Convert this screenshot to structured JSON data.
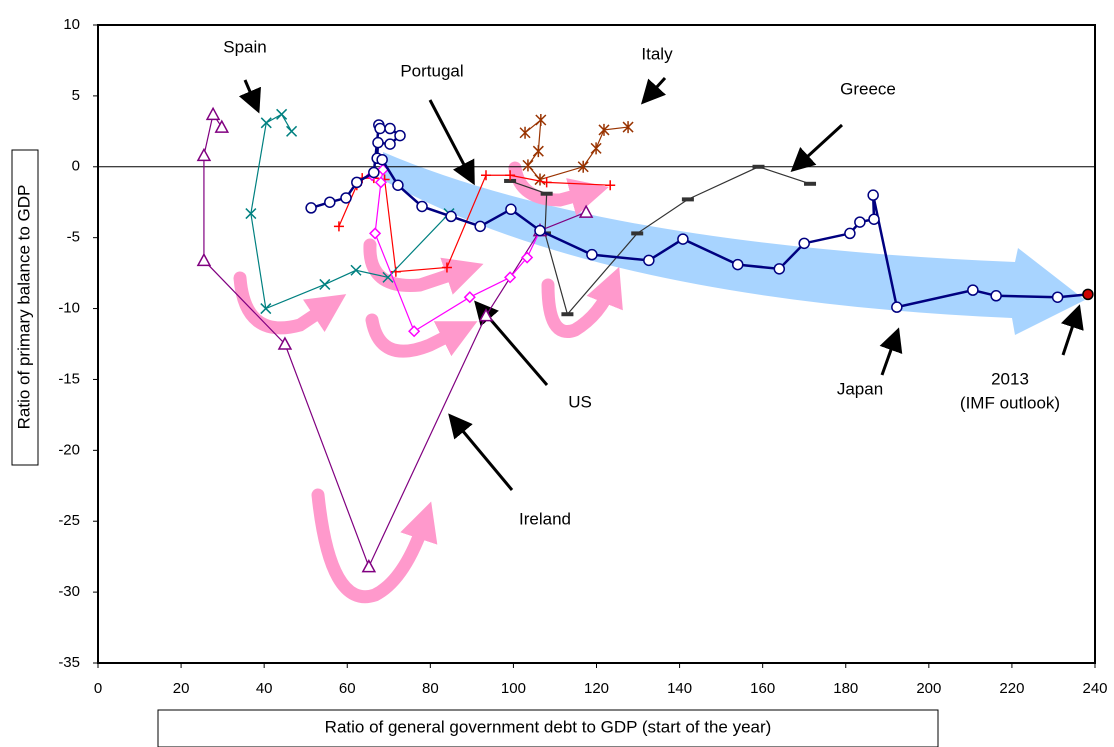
{
  "chart_data": {
    "type": "line",
    "x_label": "Ratio of general government debt to GDP (start of the year)",
    "y_label": "Ratio of primary balance to GDP",
    "xlim": [
      0,
      240
    ],
    "xticks": [
      0,
      20,
      40,
      60,
      80,
      100,
      120,
      140,
      160,
      180,
      200,
      220,
      240
    ],
    "ylim": [
      -35,
      10
    ],
    "yticks": [
      -35,
      -30,
      -25,
      -20,
      -15,
      -10,
      -5,
      0,
      5,
      10
    ],
    "zero_line": true,
    "annotations": [
      "2013",
      "(IMF outlook)"
    ],
    "last_point_color": "#cc0000",
    "series": [
      {
        "name": "Japan",
        "color": "#000080",
        "marker": "circle",
        "x": [
          51.3,
          55.8,
          59.7,
          62.3,
          66.4,
          67.6,
          67.9,
          70.3,
          72.7,
          70.3,
          67.4,
          67.2,
          68.4,
          72.2,
          78,
          85,
          92,
          99.4,
          106.4,
          118.9,
          132.6,
          140.8,
          154,
          164,
          170,
          181,
          183.4,
          186.8,
          186.6,
          192.3,
          210.6,
          216.2,
          231,
          238.3
        ],
        "values": [
          -2.9,
          -2.5,
          -2.2,
          -1.1,
          -0.4,
          2.95,
          2.7,
          2.7,
          2.2,
          1.6,
          1.7,
          0.6,
          0.5,
          -1.3,
          -2.8,
          -3.5,
          -4.2,
          -3.0,
          -4.5,
          -6.2,
          -6.6,
          -5.1,
          -6.9,
          -7.2,
          -5.4,
          -4.7,
          -3.9,
          -3.7,
          -2.0,
          -9.9,
          -8.7,
          -9.1,
          -9.2,
          -9.0
        ]
      },
      {
        "name": "Ireland",
        "color": "#800080",
        "marker": "triangle",
        "x": [
          29.8,
          27.7,
          25.5,
          25.5,
          45,
          65.2,
          93.4,
          106.4,
          117.5
        ],
        "values": [
          2.8,
          3.7,
          0.8,
          -6.6,
          -12.5,
          -28.2,
          -10.5,
          -4.5,
          -3.2
        ]
      },
      {
        "name": "Spain",
        "color": "#008080",
        "marker": "x",
        "x": [
          46.6,
          44.2,
          40.5,
          36.8,
          40.4,
          54.6,
          62.1,
          69.8,
          84.5
        ],
        "values": [
          2.5,
          3.7,
          3.1,
          -3.3,
          -10,
          -8.3,
          -7.3,
          -7.8,
          -3.3
        ]
      },
      {
        "name": "US",
        "color": "#ff00ff",
        "marker": "diamond",
        "x": [
          66.0,
          68.6,
          68.1,
          66.7,
          76.1,
          89.5,
          99.2,
          103.3,
          106.4
        ],
        "values": [
          -0.6,
          -0.2,
          -1.1,
          -4.7,
          -11.6,
          -9.2,
          -7.8,
          -6.4,
          -4.5
        ]
      },
      {
        "name": "Portugal",
        "color": "#ff0000",
        "marker": "plus",
        "x": [
          58,
          62.3,
          63.6,
          66.4,
          69,
          71.7,
          84,
          93.4,
          99.2,
          108,
          123.3
        ],
        "values": [
          -4.2,
          -1.3,
          -0.8,
          -0.8,
          -0.9,
          -7.4,
          -7.1,
          -0.6,
          -0.6,
          -1.1,
          -1.3
        ]
      },
      {
        "name": "Italy",
        "color": "#993300",
        "marker": "asterisk",
        "x": [
          102.8,
          106.6,
          106,
          103.5,
          106.4,
          116.8,
          119.9,
          121.8,
          127.6
        ],
        "values": [
          2.4,
          3.3,
          1.1,
          0.1,
          -0.9,
          0,
          1.3,
          2.6,
          2.8
        ]
      },
      {
        "name": "Greece",
        "color": "#333333",
        "marker": "dash",
        "x": [
          99.2,
          108,
          107.6,
          113,
          129.8,
          142,
          159,
          171.4
        ],
        "values": [
          -1,
          -1.9,
          -4.7,
          -10.4,
          -4.7,
          -2.3,
          0,
          -1.2
        ]
      }
    ]
  }
}
